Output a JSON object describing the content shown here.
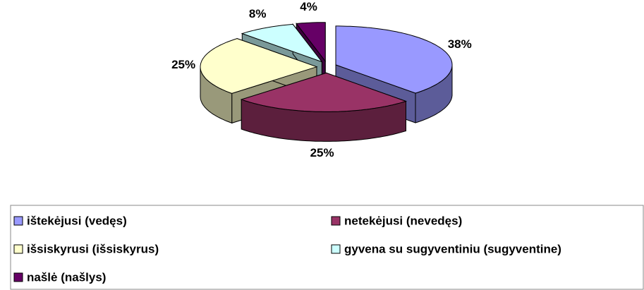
{
  "chart_data": {
    "type": "pie3d",
    "categories": [
      "ištekėjusi (vedęs)",
      "netekėjusi (nevedęs)",
      "išsiskyrusi (išsiskyrus)",
      "gyvena su sugyventiniu (sugyventine)",
      "našlė (našlys)"
    ],
    "values": [
      38,
      25,
      25,
      8,
      4
    ],
    "value_labels": [
      "38%",
      "25%",
      "25%",
      "8%",
      "4%"
    ],
    "colors": [
      "#9999ff",
      "#993366",
      "#ffffcc",
      "#ccffff",
      "#660066"
    ],
    "legend": "bottom"
  }
}
